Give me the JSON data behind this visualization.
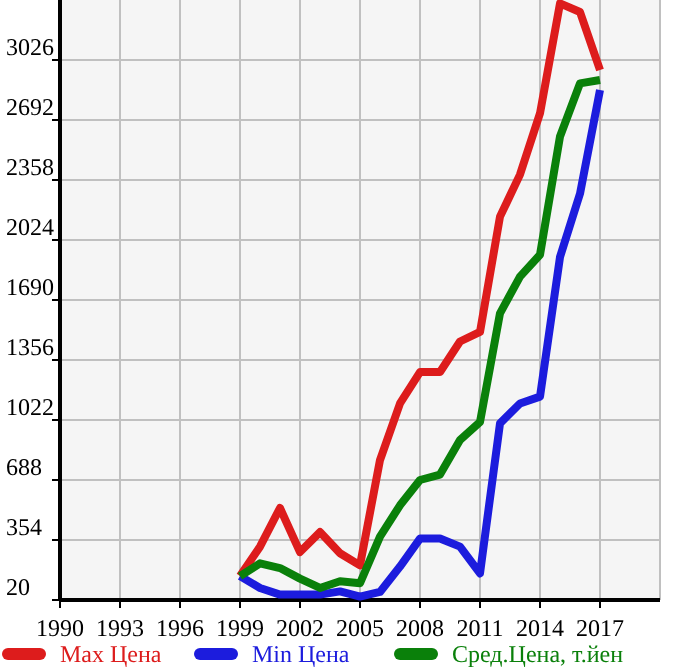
{
  "chart_data": {
    "type": "line",
    "x": [
      1999,
      2000,
      2001,
      2002,
      2003,
      2004,
      2005,
      2006,
      2007,
      2008,
      2009,
      2010,
      2011,
      2012,
      2013,
      2014,
      2015,
      2016,
      2017
    ],
    "series": [
      {
        "name": "Max Цена",
        "color": "#dd1c1c",
        "values": [
          153,
          317,
          532,
          287,
          398,
          280,
          213,
          799,
          1114,
          1289,
          1289,
          1459,
          1512,
          2154,
          2388,
          2729,
          3341,
          3293,
          2970
        ]
      },
      {
        "name": "Min Цена",
        "color": "#1c1cdd",
        "values": [
          153,
          87,
          50,
          50,
          50,
          68,
          39,
          65,
          206,
          362,
          362,
          317,
          168,
          1003,
          1114,
          1152,
          1929,
          2282,
          2859
        ]
      },
      {
        "name": "Сред.Цена, т.йен",
        "color": "#0a800a",
        "values": [
          153,
          224,
          198,
          139,
          87,
          124,
          113,
          373,
          547,
          688,
          718,
          911,
          1011,
          1616,
          1820,
          1942,
          2600,
          2896,
          2915
        ]
      }
    ],
    "xlim": [
      1990,
      2020
    ],
    "xticks": [
      1990,
      1993,
      1996,
      1999,
      2002,
      2005,
      2008,
      2011,
      2014,
      2017
    ],
    "ylim": [
      20,
      3360
    ],
    "yticks": [
      20,
      354,
      688,
      1022,
      1356,
      1690,
      2024,
      2358,
      2692,
      3026
    ],
    "grid": true,
    "legend": "bottom",
    "marker": "none",
    "line_style": "solid"
  }
}
